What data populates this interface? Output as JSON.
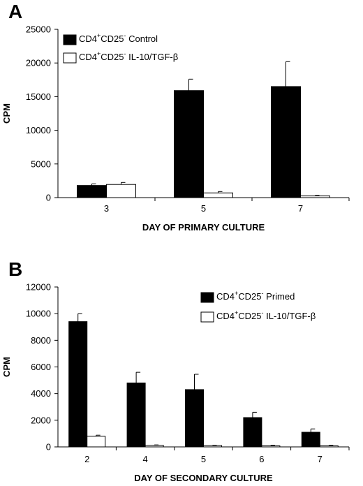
{
  "chart_data": [
    {
      "panel_label": "A",
      "type": "bar",
      "categories": [
        "3",
        "5",
        "7"
      ],
      "series": [
        {
          "name": "CD4+CD25- Control",
          "name_parts": {
            "base": "CD4",
            "sup1": "+",
            "mid": "CD25",
            "sup2": "-",
            "rest": " Control"
          },
          "fill": "#000000",
          "values": [
            1800,
            15900,
            16500
          ],
          "errors": [
            250,
            1700,
            3700
          ]
        },
        {
          "name": "CD4+CD25- IL-10/TGF-β",
          "name_parts": {
            "base": "CD4",
            "sup1": "+",
            "mid": "CD25",
            "sup2": "-",
            "rest": " IL-10/TGF-β"
          },
          "fill": "#ffffff",
          "values": [
            1950,
            700,
            250
          ],
          "errors": [
            300,
            200,
            80
          ]
        }
      ],
      "xlabel": "DAY OF PRIMARY CULTURE",
      "ylabel": "CPM",
      "ylim": [
        0,
        25000
      ],
      "yticks": [
        0,
        5000,
        10000,
        15000,
        20000,
        25000
      ],
      "grid": false,
      "legend_position": "top-left"
    },
    {
      "panel_label": "B",
      "type": "bar",
      "categories": [
        "2",
        "4",
        "5",
        "6",
        "7"
      ],
      "series": [
        {
          "name": "CD4+CD25- Primed",
          "name_parts": {
            "base": "CD4",
            "sup1": "+",
            "mid": "CD25",
            "sup2": "-",
            "rest": " Primed"
          },
          "fill": "#000000",
          "values": [
            9400,
            4800,
            4300,
            2200,
            1100
          ],
          "errors": [
            600,
            800,
            1150,
            400,
            250
          ]
        },
        {
          "name": "CD4+CD25- IL-10/TGF-β",
          "name_parts": {
            "base": "CD4",
            "sup1": "+",
            "mid": "CD25",
            "sup2": "-",
            "rest": " IL-10/TGF-β"
          },
          "fill": "#ffffff",
          "values": [
            800,
            120,
            100,
            80,
            80
          ],
          "errors": [
            80,
            30,
            30,
            40,
            40
          ]
        }
      ],
      "xlabel": "DAY OF SECONDARY CULTURE",
      "ylabel": "CPM",
      "ylim": [
        0,
        12000
      ],
      "yticks": [
        0,
        2000,
        4000,
        6000,
        8000,
        10000,
        12000
      ],
      "grid": false,
      "legend_position": "top-right"
    }
  ]
}
